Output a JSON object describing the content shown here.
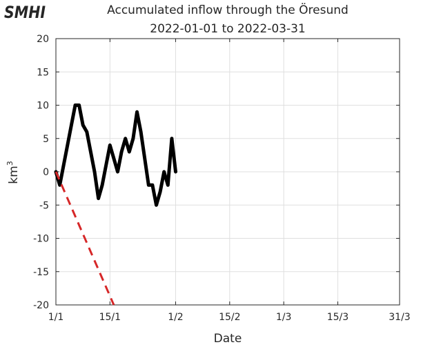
{
  "logo": "SMHI",
  "chart_data": {
    "type": "line",
    "title": [
      "Accumulated inflow through the Öresund",
      "2022-01-01 to 2022-03-31"
    ],
    "xlabel": "Date",
    "ylabel": "km",
    "ylabel_sup": "3",
    "xlim": [
      "2022-01-01",
      "2022-03-31"
    ],
    "ylim": [
      -20,
      20
    ],
    "xticks": [
      {
        "date": "2022-01-01",
        "label": "1/1"
      },
      {
        "date": "2022-01-15",
        "label": "15/1"
      },
      {
        "date": "2022-02-01",
        "label": "1/2"
      },
      {
        "date": "2022-02-15",
        "label": "15/2"
      },
      {
        "date": "2022-03-01",
        "label": "1/3"
      },
      {
        "date": "2022-03-15",
        "label": "15/3"
      },
      {
        "date": "2022-03-31",
        "label": "31/3"
      }
    ],
    "yticks": [
      -20,
      -15,
      -10,
      -5,
      0,
      5,
      10,
      15,
      20
    ],
    "grid": true,
    "colors": {
      "inflow": "#000000",
      "trend": "#d62728"
    },
    "series": [
      {
        "style": "solid",
        "color": "#000000",
        "points": [
          [
            "2022-01-01",
            0
          ],
          [
            "2022-01-02",
            -2
          ],
          [
            "2022-01-03",
            1
          ],
          [
            "2022-01-04",
            4
          ],
          [
            "2022-01-05",
            7
          ],
          [
            "2022-01-06",
            10
          ],
          [
            "2022-01-07",
            10
          ],
          [
            "2022-01-08",
            7
          ],
          [
            "2022-01-09",
            6
          ],
          [
            "2022-01-10",
            3
          ],
          [
            "2022-01-11",
            0
          ],
          [
            "2022-01-12",
            -4
          ],
          [
            "2022-01-13",
            -2
          ],
          [
            "2022-01-14",
            1
          ],
          [
            "2022-01-15",
            4
          ],
          [
            "2022-01-16",
            2
          ],
          [
            "2022-01-17",
            0
          ],
          [
            "2022-01-18",
            3
          ],
          [
            "2022-01-19",
            5
          ],
          [
            "2022-01-20",
            3
          ],
          [
            "2022-01-21",
            5
          ],
          [
            "2022-01-22",
            9
          ],
          [
            "2022-01-23",
            6
          ],
          [
            "2022-01-24",
            2
          ],
          [
            "2022-01-25",
            -2
          ],
          [
            "2022-01-26",
            -2
          ],
          [
            "2022-01-27",
            -5
          ],
          [
            "2022-01-28",
            -3
          ],
          [
            "2022-01-29",
            0
          ],
          [
            "2022-01-30",
            -2
          ],
          [
            "2022-01-31",
            5
          ],
          [
            "2022-02-01",
            0
          ]
        ]
      },
      {
        "style": "dashed",
        "color": "#d62728",
        "points": [
          [
            "2022-01-01",
            0
          ],
          [
            "2022-01-16",
            -20
          ]
        ]
      }
    ]
  }
}
